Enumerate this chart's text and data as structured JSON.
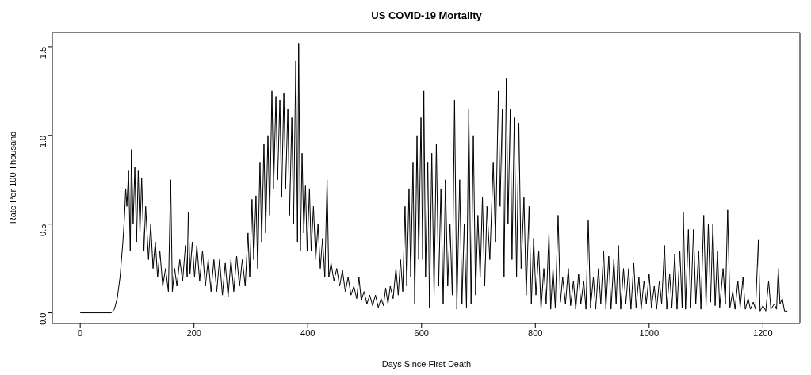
{
  "chart_data": {
    "type": "line",
    "title": "US COVID-19 Mortality",
    "xlabel": "Days Since First Death",
    "ylabel": "Rate Per 100 Thousand",
    "color": "#000000",
    "marker": "none",
    "xlim": [
      -49,
      1265
    ],
    "xticks": [
      0,
      200,
      400,
      600,
      800,
      1000,
      1200
    ],
    "ylim": [
      -0.06,
      1.58
    ],
    "yticks": [
      {
        "value": 0,
        "label": "0.0"
      },
      0.5,
      {
        "value": 1,
        "label": "1.0"
      },
      1.5
    ],
    "x": [
      0,
      55,
      60,
      65,
      70,
      75,
      78,
      80,
      82,
      85,
      88,
      90,
      93,
      96,
      99,
      102,
      105,
      108,
      112,
      115,
      120,
      124,
      128,
      132,
      136,
      140,
      145,
      150,
      155,
      159,
      162,
      166,
      170,
      175,
      180,
      185,
      188,
      190,
      193,
      197,
      201,
      205,
      210,
      215,
      220,
      225,
      230,
      235,
      240,
      245,
      250,
      255,
      260,
      265,
      270,
      275,
      280,
      285,
      290,
      295,
      298,
      302,
      305,
      309,
      312,
      316,
      319,
      323,
      326,
      330,
      333,
      337,
      340,
      344,
      347,
      351,
      354,
      358,
      361,
      365,
      368,
      372,
      375,
      379,
      382,
      384,
      387,
      390,
      393,
      396,
      399,
      403,
      406,
      410,
      414,
      418,
      422,
      426,
      430,
      434,
      437,
      441,
      446,
      451,
      456,
      461,
      466,
      471,
      476,
      481,
      486,
      490,
      494,
      499,
      504,
      509,
      514,
      519,
      524,
      529,
      533,
      537,
      541,
      545,
      550,
      555,
      559,
      563,
      567,
      571,
      574,
      578,
      581,
      585,
      588,
      592,
      595,
      599,
      602,
      604,
      607,
      611,
      614,
      618,
      622,
      626,
      630,
      634,
      638,
      642,
      646,
      650,
      654,
      658,
      662,
      667,
      671,
      675,
      679,
      683,
      687,
      691,
      695,
      699,
      703,
      707,
      711,
      715,
      720,
      726,
      730,
      735,
      738,
      742,
      745,
      749,
      752,
      756,
      759,
      763,
      767,
      771,
      775,
      780,
      784,
      789,
      793,
      797,
      801,
      806,
      810,
      815,
      819,
      824,
      827,
      831,
      835,
      840,
      844,
      848,
      853,
      858,
      862,
      867,
      871,
      876,
      880,
      885,
      889,
      893,
      897,
      902,
      906,
      911,
      915,
      920,
      924,
      929,
      933,
      938,
      942,
      946,
      950,
      955,
      959,
      964,
      968,
      973,
      977,
      982,
      986,
      991,
      995,
      1000,
      1004,
      1009,
      1013,
      1018,
      1022,
      1027,
      1031,
      1036,
      1040,
      1045,
      1049,
      1054,
      1058,
      1060,
      1064,
      1069,
      1073,
      1078,
      1082,
      1087,
      1091,
      1096,
      1100,
      1104,
      1108,
      1112,
      1116,
      1120,
      1124,
      1130,
      1134,
      1138,
      1142,
      1147,
      1151,
      1156,
      1160,
      1165,
      1169,
      1174,
      1178,
      1183,
      1187,
      1192,
      1195,
      1200,
      1205,
      1210,
      1214,
      1220,
      1224,
      1227,
      1230,
      1234,
      1238,
      1243
    ],
    "values": [
      0,
      0,
      0.02,
      0.08,
      0.2,
      0.4,
      0.55,
      0.7,
      0.6,
      0.8,
      0.35,
      0.92,
      0.5,
      0.82,
      0.4,
      0.8,
      0.45,
      0.76,
      0.35,
      0.6,
      0.3,
      0.5,
      0.25,
      0.4,
      0.2,
      0.35,
      0.15,
      0.25,
      0.12,
      0.75,
      0.12,
      0.25,
      0.15,
      0.3,
      0.18,
      0.38,
      0.2,
      0.57,
      0.22,
      0.4,
      0.2,
      0.38,
      0.18,
      0.35,
      0.15,
      0.3,
      0.12,
      0.3,
      0.12,
      0.3,
      0.1,
      0.28,
      0.09,
      0.3,
      0.12,
      0.32,
      0.15,
      0.3,
      0.15,
      0.45,
      0.2,
      0.64,
      0.3,
      0.66,
      0.25,
      0.85,
      0.4,
      0.95,
      0.45,
      1.0,
      0.55,
      1.25,
      0.7,
      1.22,
      0.75,
      1.2,
      0.65,
      1.24,
      0.7,
      1.15,
      0.55,
      1.1,
      0.5,
      1.42,
      0.4,
      1.52,
      0.35,
      0.9,
      0.45,
      0.72,
      0.35,
      0.7,
      0.35,
      0.6,
      0.3,
      0.5,
      0.25,
      0.42,
      0.2,
      0.75,
      0.2,
      0.28,
      0.18,
      0.25,
      0.15,
      0.24,
      0.12,
      0.2,
      0.1,
      0.15,
      0.08,
      0.2,
      0.07,
      0.12,
      0.05,
      0.1,
      0.04,
      0.1,
      0.03,
      0.08,
      0.04,
      0.14,
      0.05,
      0.15,
      0.08,
      0.25,
      0.1,
      0.3,
      0.12,
      0.6,
      0.15,
      0.7,
      0.2,
      0.85,
      0.05,
      1.0,
      0.3,
      1.1,
      0.3,
      1.25,
      0.2,
      0.85,
      0.03,
      0.9,
      0.1,
      0.95,
      0.15,
      0.7,
      0.05,
      0.75,
      0.15,
      0.5,
      0.1,
      1.2,
      0.02,
      0.75,
      0.05,
      0.5,
      0.03,
      1.15,
      0.05,
      1.0,
      0.1,
      0.55,
      0.2,
      0.65,
      0.15,
      0.6,
      0.3,
      0.85,
      0.4,
      1.25,
      0.6,
      1.15,
      0.2,
      1.32,
      0.5,
      1.15,
      0.3,
      1.1,
      0.2,
      1.07,
      0.25,
      0.65,
      0.1,
      0.6,
      0.05,
      0.42,
      0.1,
      0.35,
      0.02,
      0.25,
      0.05,
      0.45,
      0.02,
      0.25,
      0.03,
      0.55,
      0.06,
      0.2,
      0.05,
      0.25,
      0.04,
      0.18,
      0.02,
      0.22,
      0.05,
      0.18,
      0.02,
      0.52,
      0.03,
      0.2,
      0.02,
      0.25,
      0.05,
      0.35,
      0.02,
      0.32,
      0.02,
      0.3,
      0.05,
      0.38,
      0.02,
      0.25,
      0.05,
      0.25,
      0.02,
      0.28,
      0.03,
      0.2,
      0.02,
      0.18,
      0.05,
      0.22,
      0.03,
      0.15,
      0.02,
      0.18,
      0.05,
      0.38,
      0.02,
      0.22,
      0.03,
      0.33,
      0.02,
      0.35,
      0.03,
      0.57,
      0.02,
      0.47,
      0.03,
      0.47,
      0.05,
      0.35,
      0.02,
      0.55,
      0.04,
      0.5,
      0.06,
      0.5,
      0.04,
      0.35,
      0.03,
      0.25,
      0.05,
      0.58,
      0.03,
      0.12,
      0.02,
      0.18,
      0.03,
      0.2,
      0.02,
      0.08,
      0.02,
      0.06,
      0.02,
      0.41,
      0.01,
      0.04,
      0.01,
      0.18,
      0.02,
      0.05,
      0.02,
      0.25,
      0.05,
      0.08,
      0.01,
      0.01
    ]
  }
}
